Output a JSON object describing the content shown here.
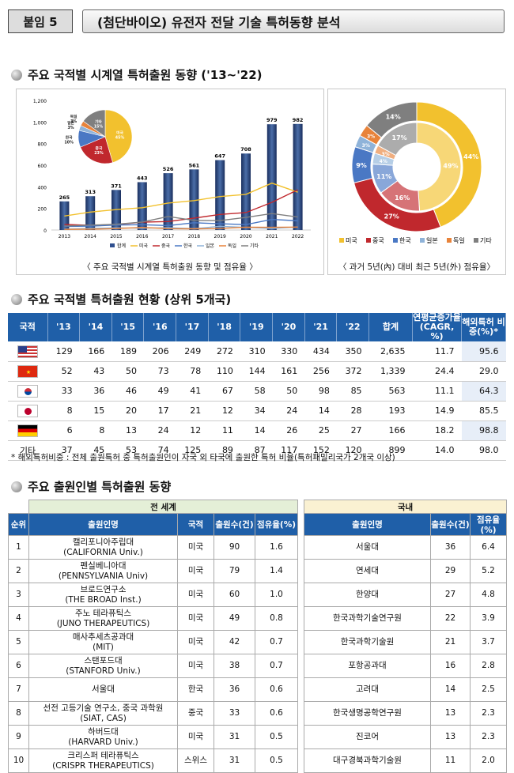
{
  "header": {
    "tag": "붙임 5",
    "title": "(첨단바이오) 유전자 전달 기술 특허동향 분석"
  },
  "section1": {
    "title": "주요 국적별 시계열 특허출원 동향 ('13~'22)",
    "caption_left": "〈 주요 국적별 시계열 특허출원 동향 및 점유율 〉",
    "caption_right": "〈 과거 5년(內) 대비 최근 5년(外) 점유율〉"
  },
  "chart_data": [
    {
      "type": "bar",
      "title": "",
      "categories": [
        "2013",
        "2014",
        "2015",
        "2016",
        "2017",
        "2018",
        "2019",
        "2020",
        "2021",
        "2022"
      ],
      "series": [
        {
          "name": "합계",
          "values": [
            265,
            313,
            371,
            443,
            526,
            561,
            647,
            708,
            979,
            982
          ],
          "color": "#2f4f8f"
        },
        {
          "name": "미국",
          "values": [
            129,
            166,
            189,
            206,
            249,
            272,
            310,
            330,
            434,
            350
          ],
          "color": "#f2c12e"
        },
        {
          "name": "중국",
          "values": [
            52,
            43,
            50,
            73,
            78,
            110,
            144,
            161,
            256,
            372
          ],
          "color": "#c0282d"
        },
        {
          "name": "한국",
          "values": [
            33,
            36,
            46,
            49,
            41,
            67,
            58,
            50,
            98,
            85
          ],
          "color": "#4a78c4"
        },
        {
          "name": "일본",
          "values": [
            8,
            15,
            20,
            17,
            21,
            12,
            34,
            24,
            14,
            28
          ],
          "color": "#8fb3d9"
        },
        {
          "name": "독일",
          "values": [
            6,
            8,
            13,
            24,
            12,
            11,
            14,
            26,
            25,
            27
          ],
          "color": "#e8833a"
        },
        {
          "name": "기타",
          "values": [
            37,
            45,
            53,
            74,
            125,
            89,
            87,
            117,
            152,
            120
          ],
          "color": "#7f7f7f"
        }
      ],
      "ylim": [
        0,
        1200
      ],
      "yticks": [
        "0",
        "200",
        "400",
        "600",
        "800",
        "1,000",
        "1,200"
      ],
      "legend": "bottom"
    },
    {
      "type": "pie",
      "title": "",
      "slices": [
        {
          "name": "미국",
          "value": 45,
          "label": "미국\n45%"
        },
        {
          "name": "중국",
          "value": 23,
          "label": "중국\n23%"
        },
        {
          "name": "한국",
          "value": 10,
          "label": "한국\n10%"
        },
        {
          "name": "일본",
          "value": 3,
          "label": "일본\n3%"
        },
        {
          "name": "독일",
          "value": 3,
          "label": "독일\n3%"
        },
        {
          "name": "기타",
          "value": 15,
          "label": "기타\n15%"
        }
      ]
    },
    {
      "type": "pie",
      "title": "",
      "inner": [
        49,
        16,
        11,
        4,
        3,
        17
      ],
      "outer": [
        44,
        27,
        9,
        3,
        3,
        14
      ],
      "inner_labels": [
        "49%",
        "16%",
        "11%",
        "4%",
        "3%",
        "17%"
      ],
      "outer_labels": [
        "44%",
        "27%",
        "9%",
        "3%",
        "3%",
        "14%"
      ],
      "legend": [
        "미국",
        "중국",
        "한국",
        "일본",
        "독일",
        "기타"
      ]
    }
  ],
  "colors": {
    "미국": "#f2c12e",
    "중국": "#c0282d",
    "한국": "#4a78c4",
    "일본": "#8fb3d9",
    "독일": "#e8833a",
    "기타": "#7f7f7f",
    "header": "#1f5fa8"
  },
  "section2": {
    "title": "주요 국적별 특허출원 현황 (상위 5개국)",
    "headers": [
      "국적",
      "'13",
      "'14",
      "'15",
      "'16",
      "'17",
      "'18",
      "'19",
      "'20",
      "'21",
      "'22",
      "합계",
      "연평균증가율 (CAGR, %)",
      "해외특허 비중(%)*"
    ],
    "rows": [
      {
        "flag": "us-flag-icon",
        "cells": [
          "129",
          "166",
          "189",
          "206",
          "249",
          "272",
          "310",
          "330",
          "434",
          "350",
          "2,635",
          "11.7",
          "95.6"
        ]
      },
      {
        "flag": "cn-flag-icon",
        "cells": [
          "52",
          "43",
          "50",
          "73",
          "78",
          "110",
          "144",
          "161",
          "256",
          "372",
          "1,339",
          "24.4",
          "29.0"
        ]
      },
      {
        "flag": "kr-flag-icon",
        "cells": [
          "33",
          "36",
          "46",
          "49",
          "41",
          "67",
          "58",
          "50",
          "98",
          "85",
          "563",
          "11.1",
          "64.3"
        ]
      },
      {
        "flag": "jp-flag-icon",
        "cells": [
          "8",
          "15",
          "20",
          "17",
          "21",
          "12",
          "34",
          "24",
          "14",
          "28",
          "193",
          "14.9",
          "85.5"
        ]
      },
      {
        "flag": "de-flag-icon",
        "cells": [
          "6",
          "8",
          "13",
          "24",
          "12",
          "11",
          "14",
          "26",
          "25",
          "27",
          "166",
          "18.2",
          "98.8"
        ]
      },
      {
        "flag": "",
        "label": "기타",
        "cells": [
          "37",
          "45",
          "53",
          "74",
          "125",
          "89",
          "87",
          "117",
          "152",
          "120",
          "899",
          "14.0",
          "98.0"
        ]
      }
    ],
    "note": "* 해외특허비중 : 전체 출원특허 중 특허출원인이 자국 외 타국에 출원한 특허 비율(특허패밀리국가 2개국 이상)"
  },
  "section3": {
    "title": "주요 출원인별 특허출원 동향",
    "group_world": "전 세계",
    "group_domestic": "국내",
    "headers_world": [
      "순위",
      "출원인명",
      "국적",
      "출원수(건)",
      "점유율(%)"
    ],
    "headers_domestic": [
      "출원인명",
      "출원수(건)",
      "점유율(%)"
    ],
    "rows": [
      {
        "rank": "1",
        "name": "캘리포니아주립대",
        "name_en": "(CALIFORNIA Univ.)",
        "country": "미국",
        "count": "90",
        "share": "1.6",
        "d_name": "서울대",
        "d_count": "36",
        "d_share": "6.4"
      },
      {
        "rank": "2",
        "name": "펜실베니아대",
        "name_en": "(PENNSYLVANIA Univ)",
        "country": "미국",
        "count": "79",
        "share": "1.4",
        "d_name": "연세대",
        "d_count": "29",
        "d_share": "5.2"
      },
      {
        "rank": "3",
        "name": "브로드연구소",
        "name_en": "(THE BROAD Inst.)",
        "country": "미국",
        "count": "60",
        "share": "1.0",
        "d_name": "한양대",
        "d_count": "27",
        "d_share": "4.8"
      },
      {
        "rank": "4",
        "name": "주노 테라퓨틱스",
        "name_en": "(JUNO THERAPEUTICS)",
        "country": "미국",
        "count": "49",
        "share": "0.8",
        "d_name": "한국과학기술연구원",
        "d_count": "22",
        "d_share": "3.9"
      },
      {
        "rank": "5",
        "name": "매사추세츠공과대",
        "name_en": "(MIT)",
        "country": "미국",
        "count": "42",
        "share": "0.7",
        "d_name": "한국과학기술원",
        "d_count": "21",
        "d_share": "3.7"
      },
      {
        "rank": "6",
        "name": "스탠포드대",
        "name_en": "(STANFORD Univ.)",
        "country": "미국",
        "count": "38",
        "share": "0.7",
        "d_name": "포항공과대",
        "d_count": "16",
        "d_share": "2.8"
      },
      {
        "rank": "7",
        "name": "서울대",
        "name_en": "",
        "country": "한국",
        "count": "36",
        "share": "0.6",
        "d_name": "고려대",
        "d_count": "14",
        "d_share": "2.5"
      },
      {
        "rank": "8",
        "name": "선전 고등기술 연구소, 중국 과학원",
        "name_en": "(SIAT, CAS)",
        "country": "중국",
        "count": "33",
        "share": "0.6",
        "d_name": "한국생명공학연구원",
        "d_count": "13",
        "d_share": "2.3"
      },
      {
        "rank": "9",
        "name": "하버드대",
        "name_en": "(HARVARD Univ.)",
        "country": "미국",
        "count": "31",
        "share": "0.5",
        "d_name": "진코어",
        "d_count": "13",
        "d_share": "2.3"
      },
      {
        "rank": "10",
        "name": "크리스퍼 테라퓨틱스",
        "name_en": "(CRISPR THERAPEUTICS)",
        "country": "스위스",
        "count": "31",
        "share": "0.5",
        "d_name": "대구경북과학기술원",
        "d_count": "11",
        "d_share": "2.0"
      }
    ]
  }
}
